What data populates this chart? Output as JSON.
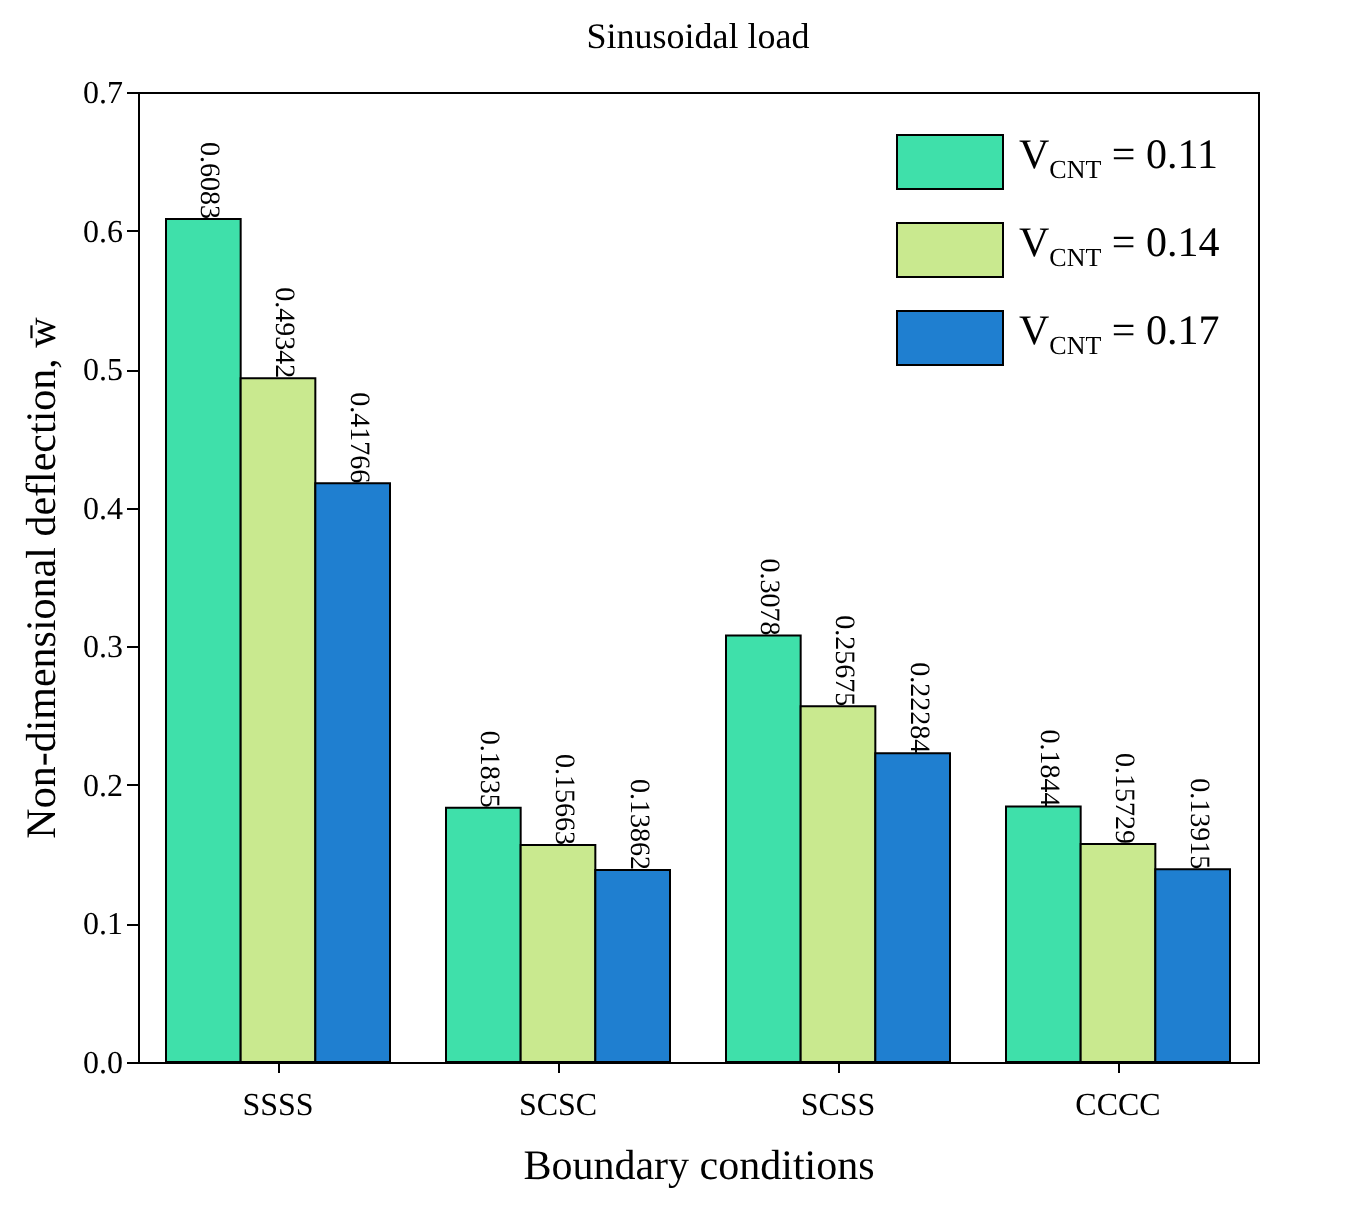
{
  "chart_data": {
    "type": "bar",
    "title": "Sinusoidal load",
    "xlabel": "Boundary conditions",
    "ylabel": "Non-dimensional deflection, w̄",
    "categories": [
      "SSSS",
      "SCSC",
      "SCSS",
      "CCCC"
    ],
    "series": [
      {
        "name": "V$_{CNT}$ = 0.11",
        "color": "#3fe0aa",
        "values": [
          0.6083,
          0.1835,
          0.3078,
          0.1844
        ]
      },
      {
        "name": "V$_{CNT}$ = 0.14",
        "color": "#c9e98f",
        "values": [
          0.49342,
          0.15663,
          0.25675,
          0.15729
        ]
      },
      {
        "name": "V$_{CNT}$ = 0.17",
        "color": "#1f7fd0",
        "values": [
          0.41766,
          0.13862,
          0.22284,
          0.13915
        ]
      }
    ],
    "ylim": [
      0,
      0.7
    ],
    "yticks": [
      {
        "value": 0,
        "label": "0.0"
      },
      0.1,
      0.2,
      0.3,
      0.4,
      0.5,
      0.6,
      0.7
    ],
    "data_labels": true,
    "legend": "top right",
    "grid": false
  }
}
